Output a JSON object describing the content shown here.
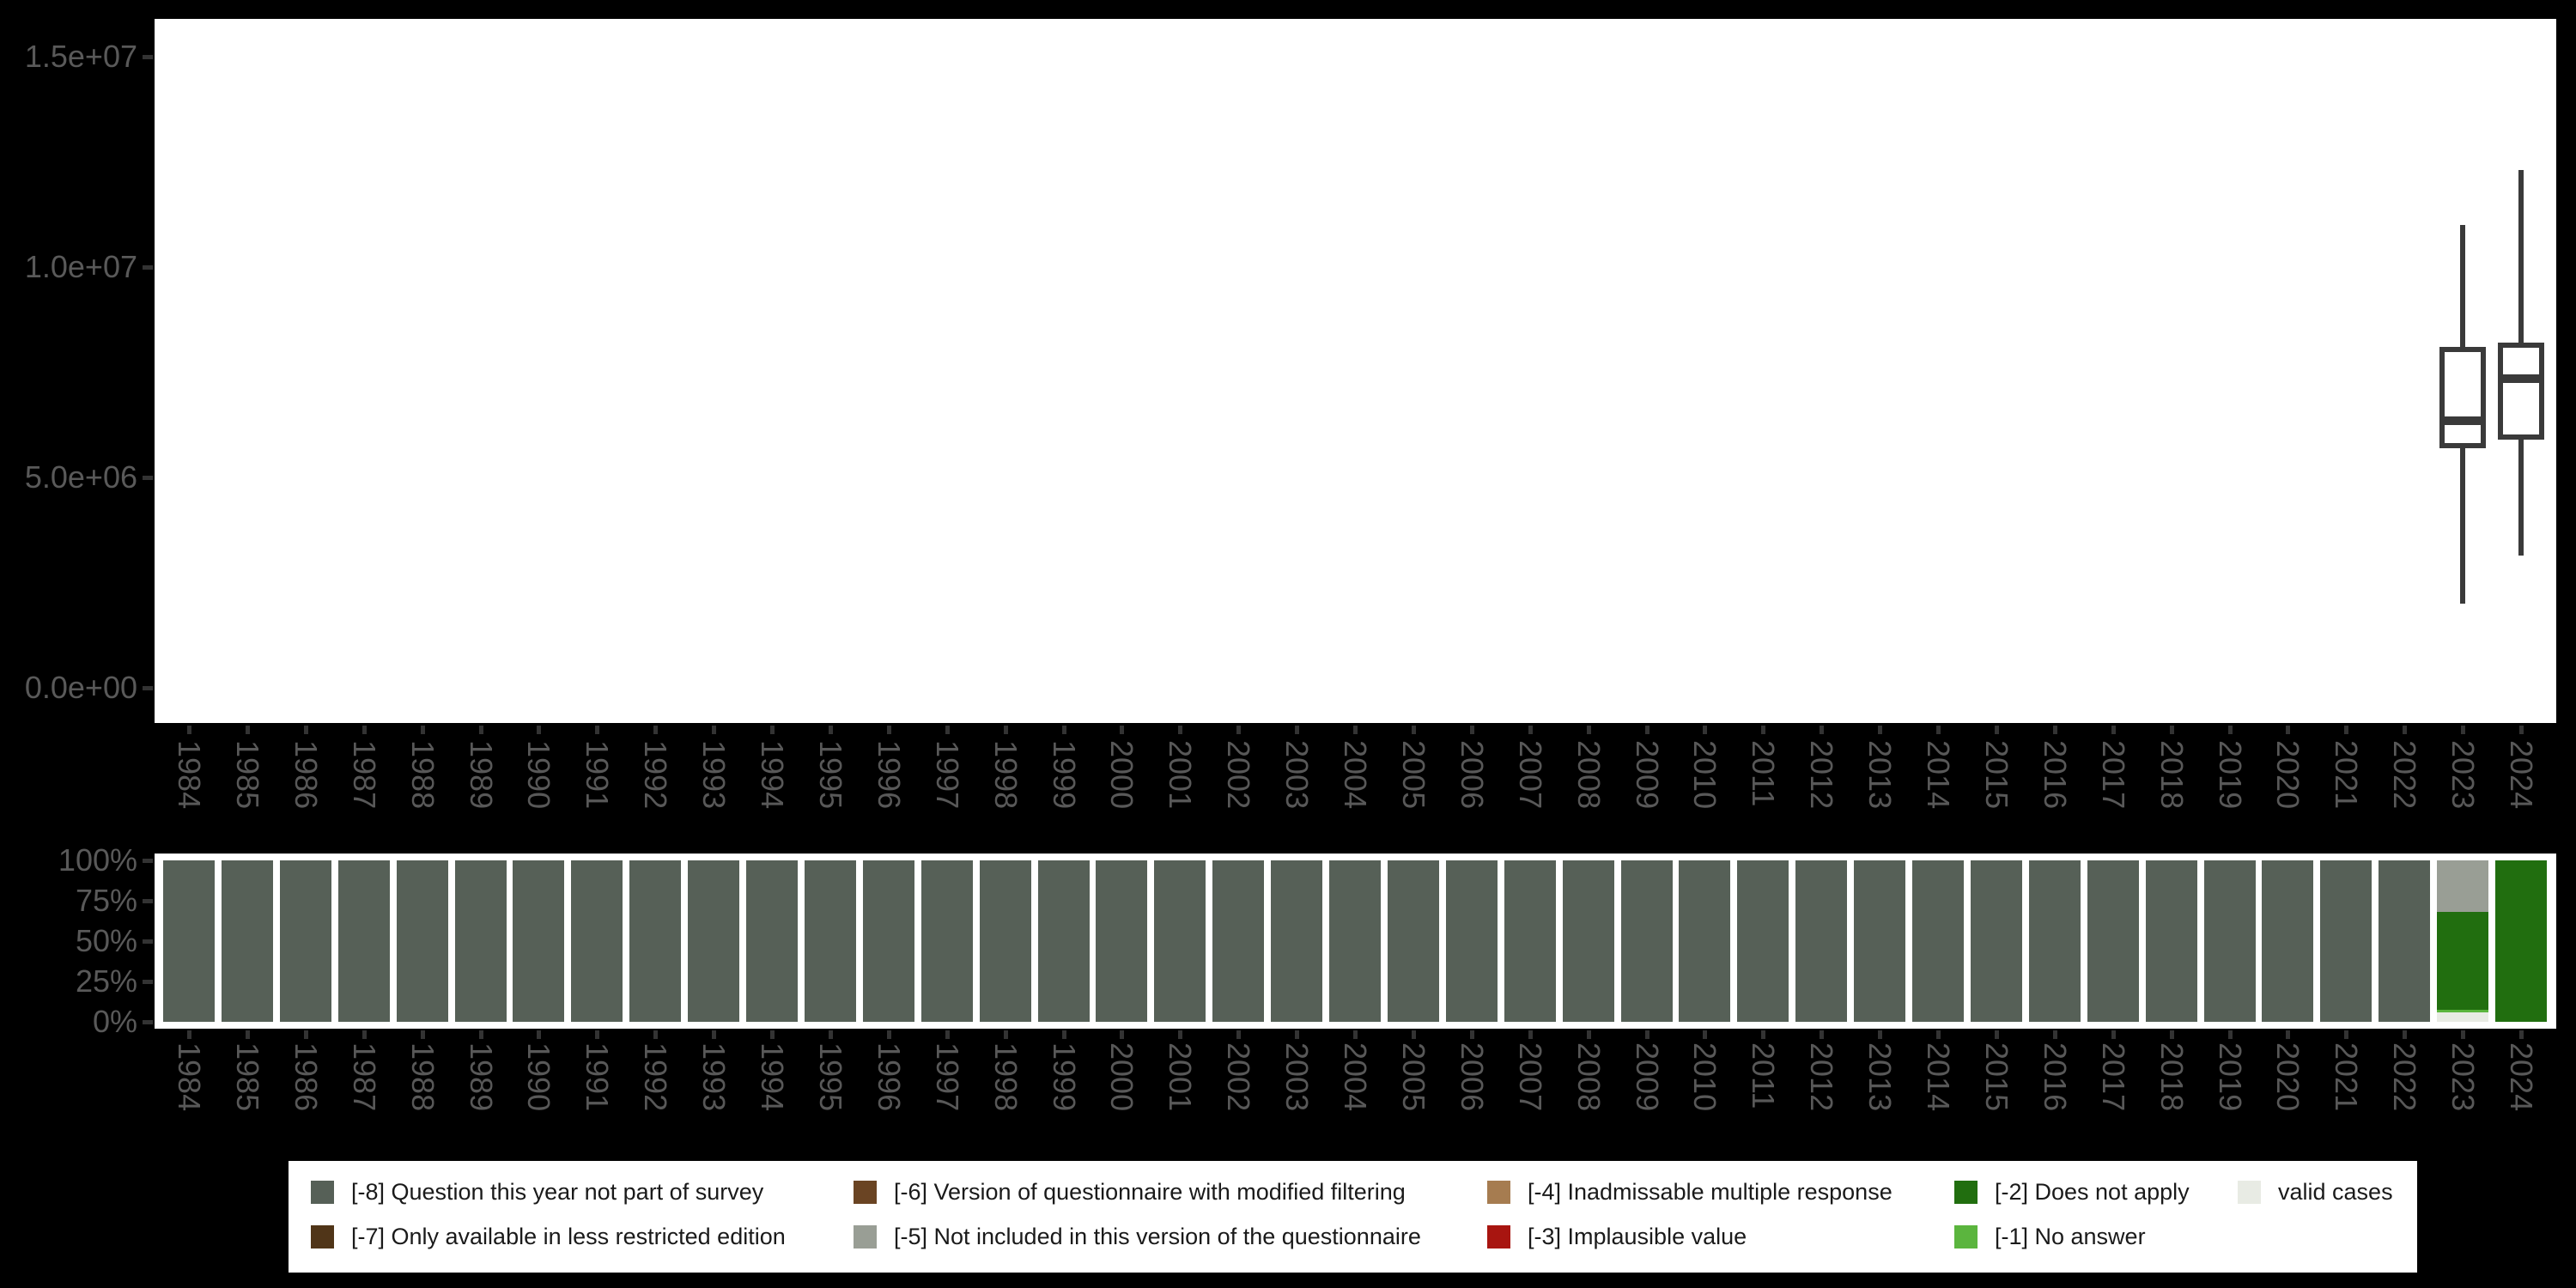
{
  "palette": {
    "-8": "#566057",
    "-7": "#503518",
    "-6": "#6A4423",
    "-5": "#999E95",
    "-4": "#A67C50",
    "-3": "#A81510",
    "-2": "#216E0F",
    "-1": "#5BB53E",
    "valid": "#E8EBE4",
    "background": "#000000",
    "panel": "#FFFFFF",
    "axis_label": "#595959",
    "tick": "#333333",
    "box_stroke": "#3A3A3A"
  },
  "chart_data": [
    {
      "id": "values-boxplot",
      "type": "boxplot",
      "title": "",
      "xlabel": "",
      "ylabel": "",
      "x": [
        "1984",
        "1985",
        "1986",
        "1987",
        "1988",
        "1989",
        "1990",
        "1991",
        "1992",
        "1993",
        "1994",
        "1995",
        "1996",
        "1997",
        "1998",
        "1999",
        "2000",
        "2001",
        "2002",
        "2003",
        "2004",
        "2005",
        "2006",
        "2007",
        "2008",
        "2009",
        "2010",
        "2011",
        "2012",
        "2013",
        "2014",
        "2015",
        "2016",
        "2017",
        "2018",
        "2019",
        "2020",
        "2021",
        "2022",
        "2023",
        "2024"
      ],
      "yticks": [
        {
          "label": "0.0e+00",
          "value": 0
        },
        {
          "label": "5.0e+06",
          "value": 5000000
        },
        {
          "label": "1.0e+07",
          "value": 10000000
        },
        {
          "label": "1.5e+07",
          "value": 15000000
        }
      ],
      "ylim": [
        -850000,
        15900000
      ],
      "grid": "off",
      "boxes": [
        {
          "x": "2023",
          "min": 2000000,
          "q1": 5700000,
          "median": 6350000,
          "q3": 8100000,
          "max": 11000000
        },
        {
          "x": "2024",
          "min": 3150000,
          "q1": 5900000,
          "median": 7350000,
          "q3": 8200000,
          "max": 12300000
        }
      ]
    },
    {
      "id": "missing-codes-shares",
      "type": "bar",
      "stacked": true,
      "title": "",
      "xlabel": "",
      "ylabel": "",
      "x": [
        "1984",
        "1985",
        "1986",
        "1987",
        "1988",
        "1989",
        "1990",
        "1991",
        "1992",
        "1993",
        "1994",
        "1995",
        "1996",
        "1997",
        "1998",
        "1999",
        "2000",
        "2001",
        "2002",
        "2003",
        "2004",
        "2005",
        "2006",
        "2007",
        "2008",
        "2009",
        "2010",
        "2011",
        "2012",
        "2013",
        "2014",
        "2015",
        "2016",
        "2017",
        "2018",
        "2019",
        "2020",
        "2021",
        "2022",
        "2023",
        "2024"
      ],
      "yticks": [
        {
          "label": "0%",
          "value": 0
        },
        {
          "label": "25%",
          "value": 25
        },
        {
          "label": "50%",
          "value": 50
        },
        {
          "label": "75%",
          "value": 75
        },
        {
          "label": "100%",
          "value": 100
        }
      ],
      "ylim": [
        0,
        100
      ],
      "grid": "off",
      "default_segments_top_to_bottom": [
        [
          "-8",
          100
        ]
      ],
      "overrides_top_to_bottom": {
        "2023": [
          [
            "-5",
            32
          ],
          [
            "-2",
            60.5
          ],
          [
            "-1",
            1.5
          ],
          [
            "valid",
            6
          ]
        ],
        "2024": [
          [
            "-2",
            100
          ]
        ]
      }
    }
  ],
  "legend": {
    "rows": [
      [
        {
          "code": "-8",
          "label": "[-8] Question this year not part of survey"
        },
        {
          "code": "-6",
          "label": "[-6] Version of questionnaire with modified filtering"
        },
        {
          "code": "-4",
          "label": "[-4] Inadmissable multiple response"
        },
        {
          "code": "-2",
          "label": "[-2] Does not apply"
        },
        {
          "code": "valid",
          "label": "valid cases"
        }
      ],
      [
        {
          "code": "-7",
          "label": "[-7] Only available in less restricted edition"
        },
        {
          "code": "-5",
          "label": "[-5] Not included in this version of the questionnaire"
        },
        {
          "code": "-3",
          "label": "[-3] Implausible value"
        },
        {
          "code": "-1",
          "label": "[-1] No answer"
        }
      ]
    ]
  }
}
